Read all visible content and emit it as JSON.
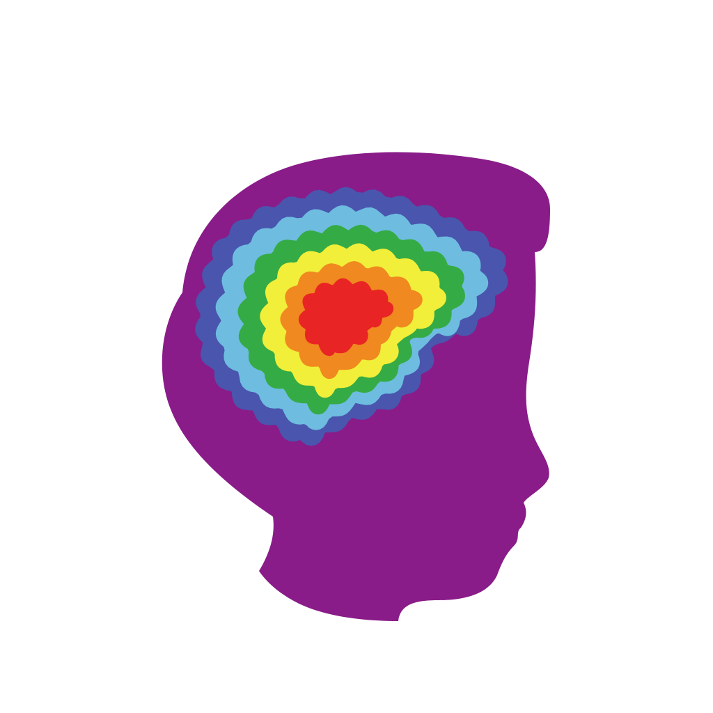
{
  "illustration": {
    "subject": "child-head-profile-with-rainbow-brain",
    "facing": "right",
    "colors": {
      "background": "#ffffff",
      "head": "#891c88",
      "rings": [
        {
          "name": "indigo",
          "color": "#4a55ae"
        },
        {
          "name": "light-blue",
          "color": "#6ebde0"
        },
        {
          "name": "green",
          "color": "#35ab45"
        },
        {
          "name": "yellow",
          "color": "#f1ef39"
        },
        {
          "name": "orange",
          "color": "#f0891f"
        },
        {
          "name": "red",
          "color": "#e92424"
        }
      ]
    }
  }
}
